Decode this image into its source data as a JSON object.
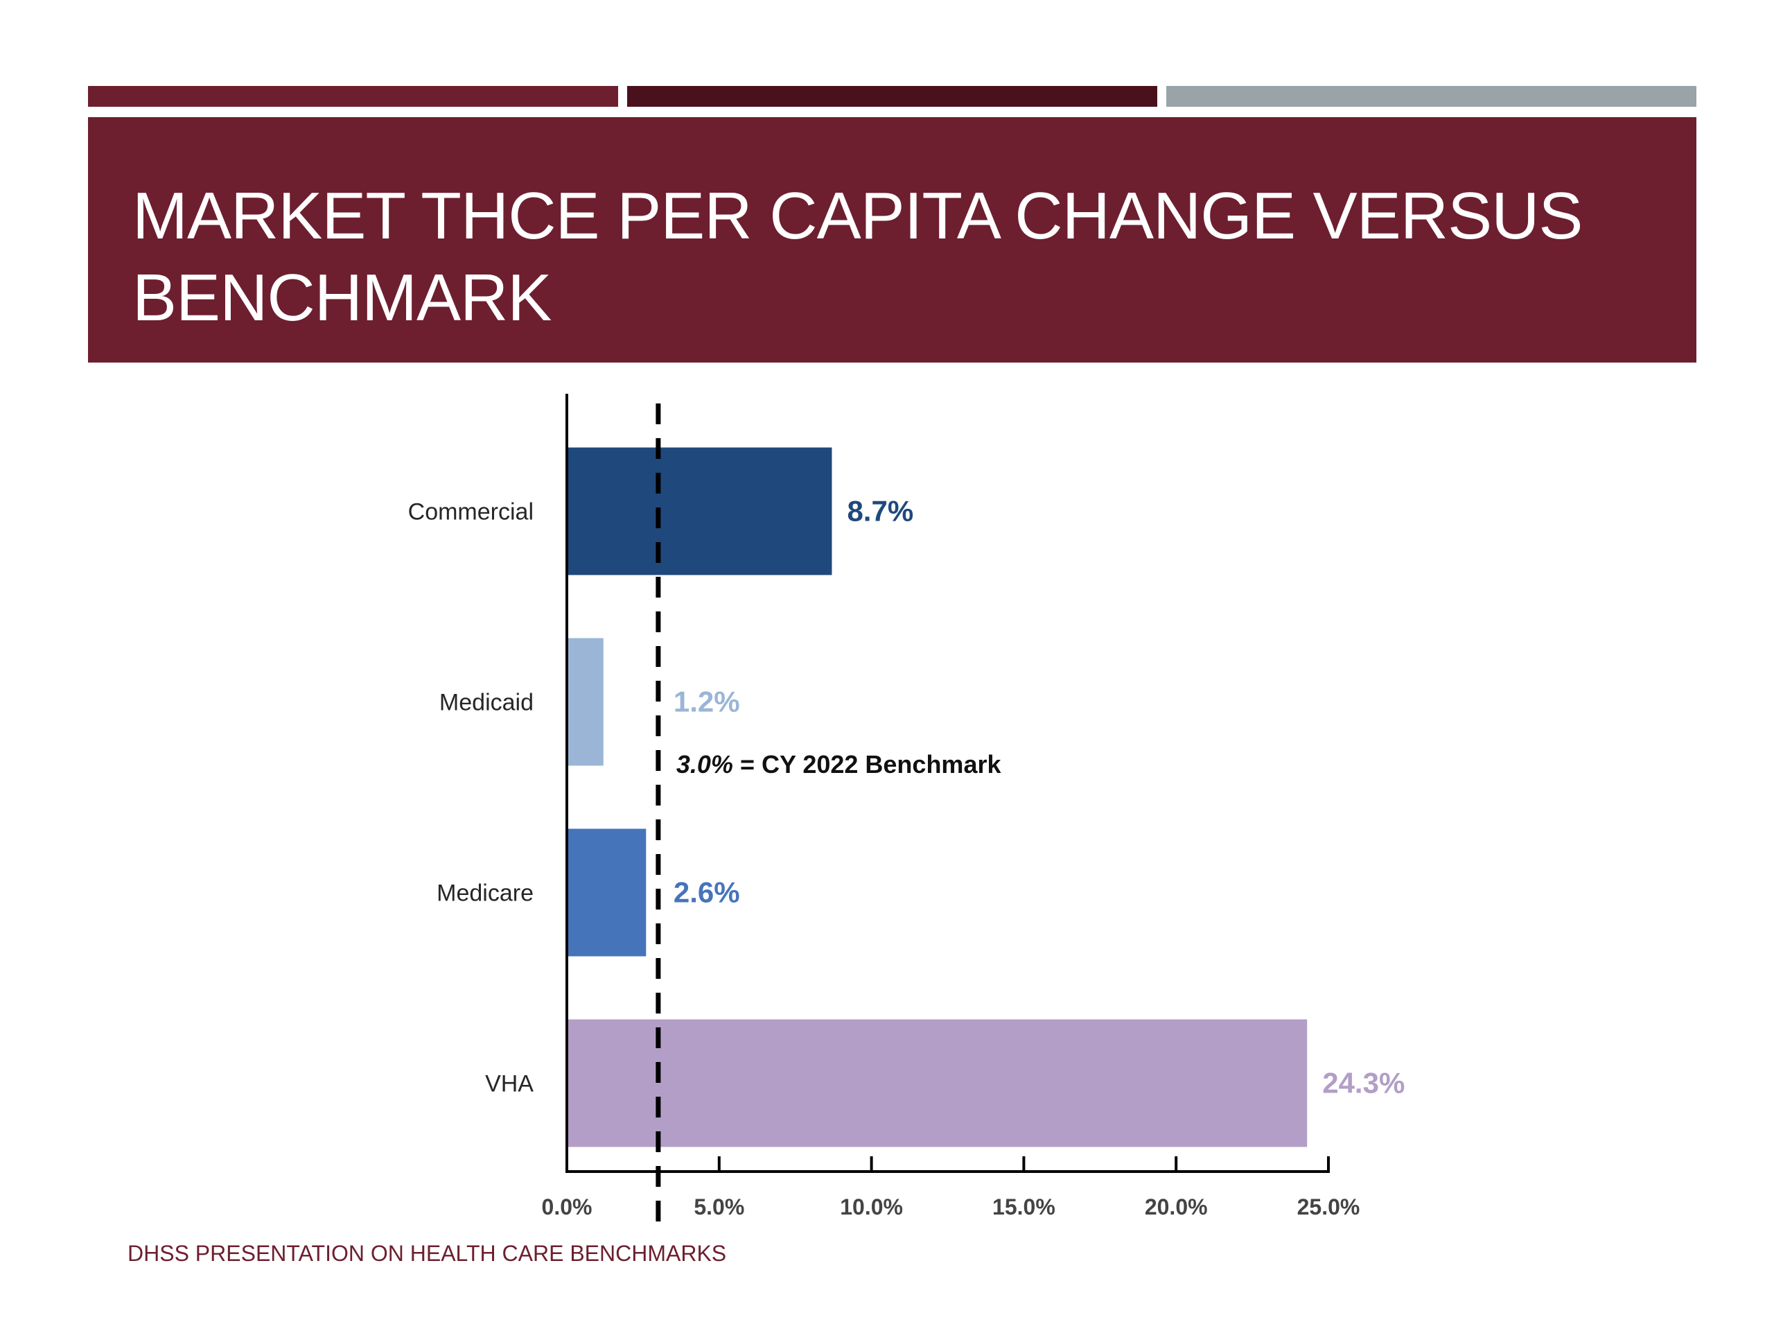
{
  "colors": {
    "accent_bars": [
      "#6d1f2f",
      "#4a111c",
      "#9aa3a8"
    ],
    "title_band": "#6d1f2f",
    "axis": "#000000"
  },
  "slide": {
    "title": "MARKET THCE PER CAPITA CHANGE VERSUS BENCHMARK",
    "footer": "DHSS PRESENTATION ON HEALTH CARE BENCHMARKS"
  },
  "chart_data": {
    "type": "bar",
    "orientation": "horizontal",
    "title": "",
    "xlabel": "",
    "ylabel": "",
    "xlim": [
      0,
      25
    ],
    "x_ticks": [
      0,
      5,
      10,
      15,
      20,
      25
    ],
    "x_tick_labels": [
      "0.0%",
      "5.0%",
      "10.0%",
      "15.0%",
      "20.0%",
      "25.0%"
    ],
    "categories": [
      "Commercial",
      "Medicaid",
      "Medicare",
      "VHA"
    ],
    "values": [
      8.7,
      1.2,
      2.6,
      24.3
    ],
    "value_labels": [
      "8.7%",
      "1.2%",
      "2.6%",
      "24.3%"
    ],
    "bar_colors": [
      "#1f497d",
      "#9ab5d6",
      "#4674bb",
      "#b29ec6"
    ],
    "benchmark": {
      "value": 3.0,
      "label_value": "3.0%",
      "label_rest": " = CY 2022 Benchmark",
      "style": "dashed"
    },
    "grid": false,
    "legend": "none"
  }
}
